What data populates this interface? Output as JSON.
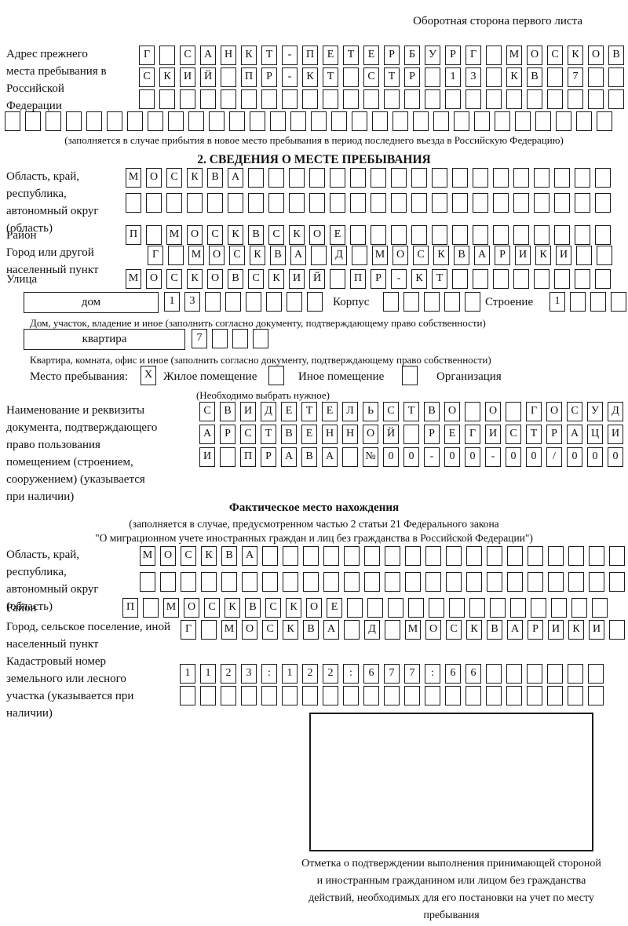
{
  "page": {
    "back_note": "Оборотная сторона первого листа"
  },
  "prev_address": {
    "label": "Адрес прежнего места пребывания в Российской Федерации",
    "rows": [
      "Г САНКТ-ПЕТЕРБУРГ МОСКОВ",
      "СКИЙ ПР-КТ СТР 13 КВ 7",
      "",
      ""
    ],
    "note": "(заполняется в случае прибытия в новое место пребывания в период последнего въезда в Российскую Федерацию)"
  },
  "section2": {
    "title": "2. СВЕДЕНИЯ О МЕСТЕ ПРЕБЫВАНИЯ",
    "region": {
      "label": "Область, край, республика, автономный округ (область)",
      "rows": [
        "МОСКВА",
        ""
      ]
    },
    "district": {
      "label": "Район",
      "row": "П МОСКВСКОЕ"
    },
    "city": {
      "label": "Город или другой населенный пункт",
      "row": "Г МОСКВА Д МОСКВАРИКИ"
    },
    "street": {
      "label": "Улица",
      "row": "МОСКОВСКИЙ ПР-КТ"
    },
    "house": {
      "box_label": "дом",
      "row": "13",
      "korpus_label": "Корпус",
      "korpus_row": "",
      "stroenie_label": "Строение",
      "stroenie_row": "1",
      "note": "Дом, участок, владение и иное (заполнить согласно документу, подтверждающему право собственности)"
    },
    "apartment": {
      "box_label": "квартира",
      "row": "7",
      "note": "Квартира, комната, офис и иное (заполнить согласно документу, подтверждающему право собственности)"
    },
    "stay": {
      "label": "Место пребывания:",
      "options": [
        {
          "mark": "X",
          "label": "Жилое помещение"
        },
        {
          "mark": "",
          "label": "Иное помещение"
        },
        {
          "mark": "",
          "label": "Организация"
        }
      ],
      "note": "(Необходимо выбрать нужное)"
    },
    "document": {
      "label": "Наименование и реквизиты документа, подтверждающего право пользования помещением (строением, сооружением) (указывается при наличии)",
      "rows": [
        "СВИДЕТЕЛЬСТВО О ГОСУД",
        "АРСТВЕННОЙ РЕГИСТРАЦИ",
        "И ПРАВА №00-00-00/000"
      ]
    }
  },
  "actual_location": {
    "title": "Фактическое место нахождения",
    "note_line1": "(заполняется в случае, предусмотренном частью 2 статьи 21 Федерального закона",
    "note_line2": "\"О миграционном учете иностранных граждан и лиц без гражданства в Российской Федерации\")",
    "region": {
      "label": "Область, край, республика, автономный округ (область)",
      "rows": [
        "МОСКВА",
        ""
      ]
    },
    "district": {
      "label": "Район",
      "row": "П МОСКВСКОЕ"
    },
    "city": {
      "label": "Город, сельское поселение, иной населенный пункт",
      "row": "Г МОСКВА Д МОСКВАРИКИ"
    },
    "cadastre": {
      "label": "Кадастровый номер земельного или лесного участка (указывается при наличии)",
      "rows": [
        "1123:122:677:66",
        ""
      ]
    },
    "stamp_note": "Отметка о подтверждении выполнения принимающей стороной и иностранным гражданином или лицом без гражданства действий, необходимых для его постановки на учет по месту пребывания"
  }
}
